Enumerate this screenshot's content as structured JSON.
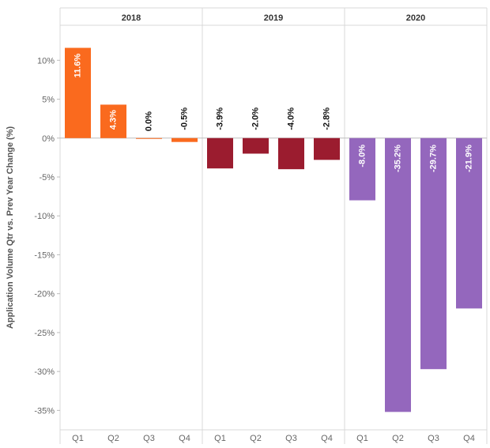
{
  "chart_data": {
    "type": "bar",
    "ylabel": "Application Volume Qtr vs. Prev Year Change (%)",
    "ylim": [
      -37.5,
      14.5
    ],
    "yticks": [
      10,
      5,
      0,
      -5,
      -10,
      -15,
      -20,
      -25,
      -30,
      -35
    ],
    "ytick_labels": [
      "10%",
      "5%",
      "0%",
      "-5%",
      "-10%",
      "-15%",
      "-20%",
      "-25%",
      "-30%",
      "-35%"
    ],
    "grid": false,
    "groups": [
      {
        "year": "2018",
        "color": "#fa6a1e",
        "categories": [
          "Q1",
          "Q2",
          "Q3",
          "Q4"
        ],
        "values": [
          11.6,
          4.3,
          0.0,
          -0.5
        ],
        "labels": [
          "11.6%",
          "4.3%",
          "0.0%",
          "-0.5%"
        ]
      },
      {
        "year": "2019",
        "color": "#9b1c2f",
        "categories": [
          "Q1",
          "Q2",
          "Q3",
          "Q4"
        ],
        "values": [
          -3.9,
          -2.0,
          -4.0,
          -2.8
        ],
        "labels": [
          "-3.9%",
          "-2.0%",
          "-4.0%",
          "-2.8%"
        ]
      },
      {
        "year": "2020",
        "color": "#9467bd",
        "categories": [
          "Q1",
          "Q2",
          "Q3",
          "Q4"
        ],
        "values": [
          -8.0,
          -35.2,
          -29.7,
          -21.9
        ],
        "labels": [
          "-8.0%",
          "-35.2%",
          "-29.7%",
          "-21.9%"
        ]
      }
    ]
  }
}
